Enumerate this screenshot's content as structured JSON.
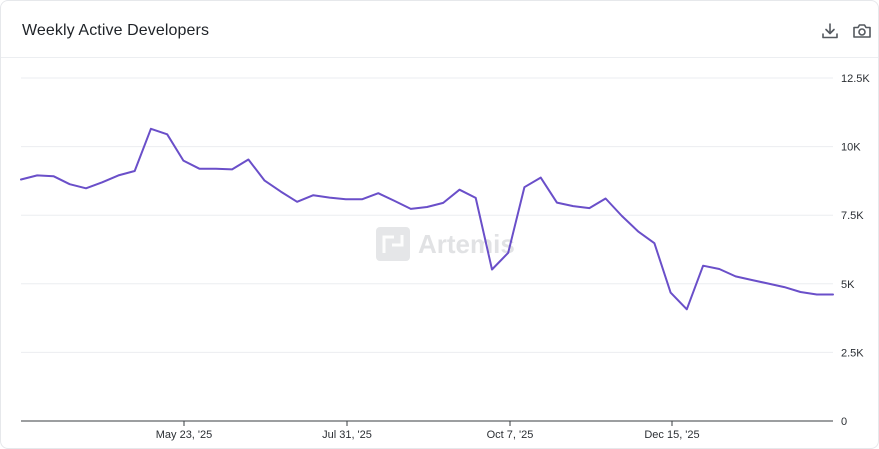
{
  "header": {
    "title": "Weekly Active Developers",
    "download_icon": "download-icon",
    "camera_icon": "camera-icon"
  },
  "watermark": {
    "text": "Artemis"
  },
  "colors": {
    "line": "#6a4fc9",
    "grid": "#ebedf0",
    "axis": "#3a3d42",
    "tick_text": "#2b2f34"
  },
  "chart_data": {
    "type": "line",
    "title": "Weekly Active Developers",
    "xlabel": "",
    "ylabel": "",
    "x_tick_labels": [
      "May 23, '25",
      "Jul 31, '25",
      "Oct 7, '25",
      "Dec 15, '25"
    ],
    "y_tick_labels": [
      "0",
      "2.5K",
      "5K",
      "7.5K",
      "10K",
      "12.5K"
    ],
    "y_ticks": [
      0,
      2500,
      5000,
      7500,
      10000,
      12500
    ],
    "ylim": [
      0,
      12500
    ],
    "y_axis_position": "right",
    "grid": true,
    "legend": "none",
    "series": [
      {
        "values": [
          8800,
          8950,
          8920,
          8630,
          8480,
          8700,
          8950,
          9110,
          10650,
          10450,
          9490,
          9190,
          9190,
          9170,
          9530,
          8760,
          8360,
          7990,
          8230,
          8140,
          8080,
          8080,
          8300,
          8020,
          7730,
          7800,
          7950,
          8430,
          8130,
          5520,
          6130,
          8520,
          8870,
          7960,
          7830,
          7760,
          8110,
          7470,
          6910,
          6480,
          4680,
          4070,
          5660,
          5540,
          5270,
          5140,
          5010,
          4880,
          4700,
          4610,
          4610
        ]
      }
    ]
  }
}
